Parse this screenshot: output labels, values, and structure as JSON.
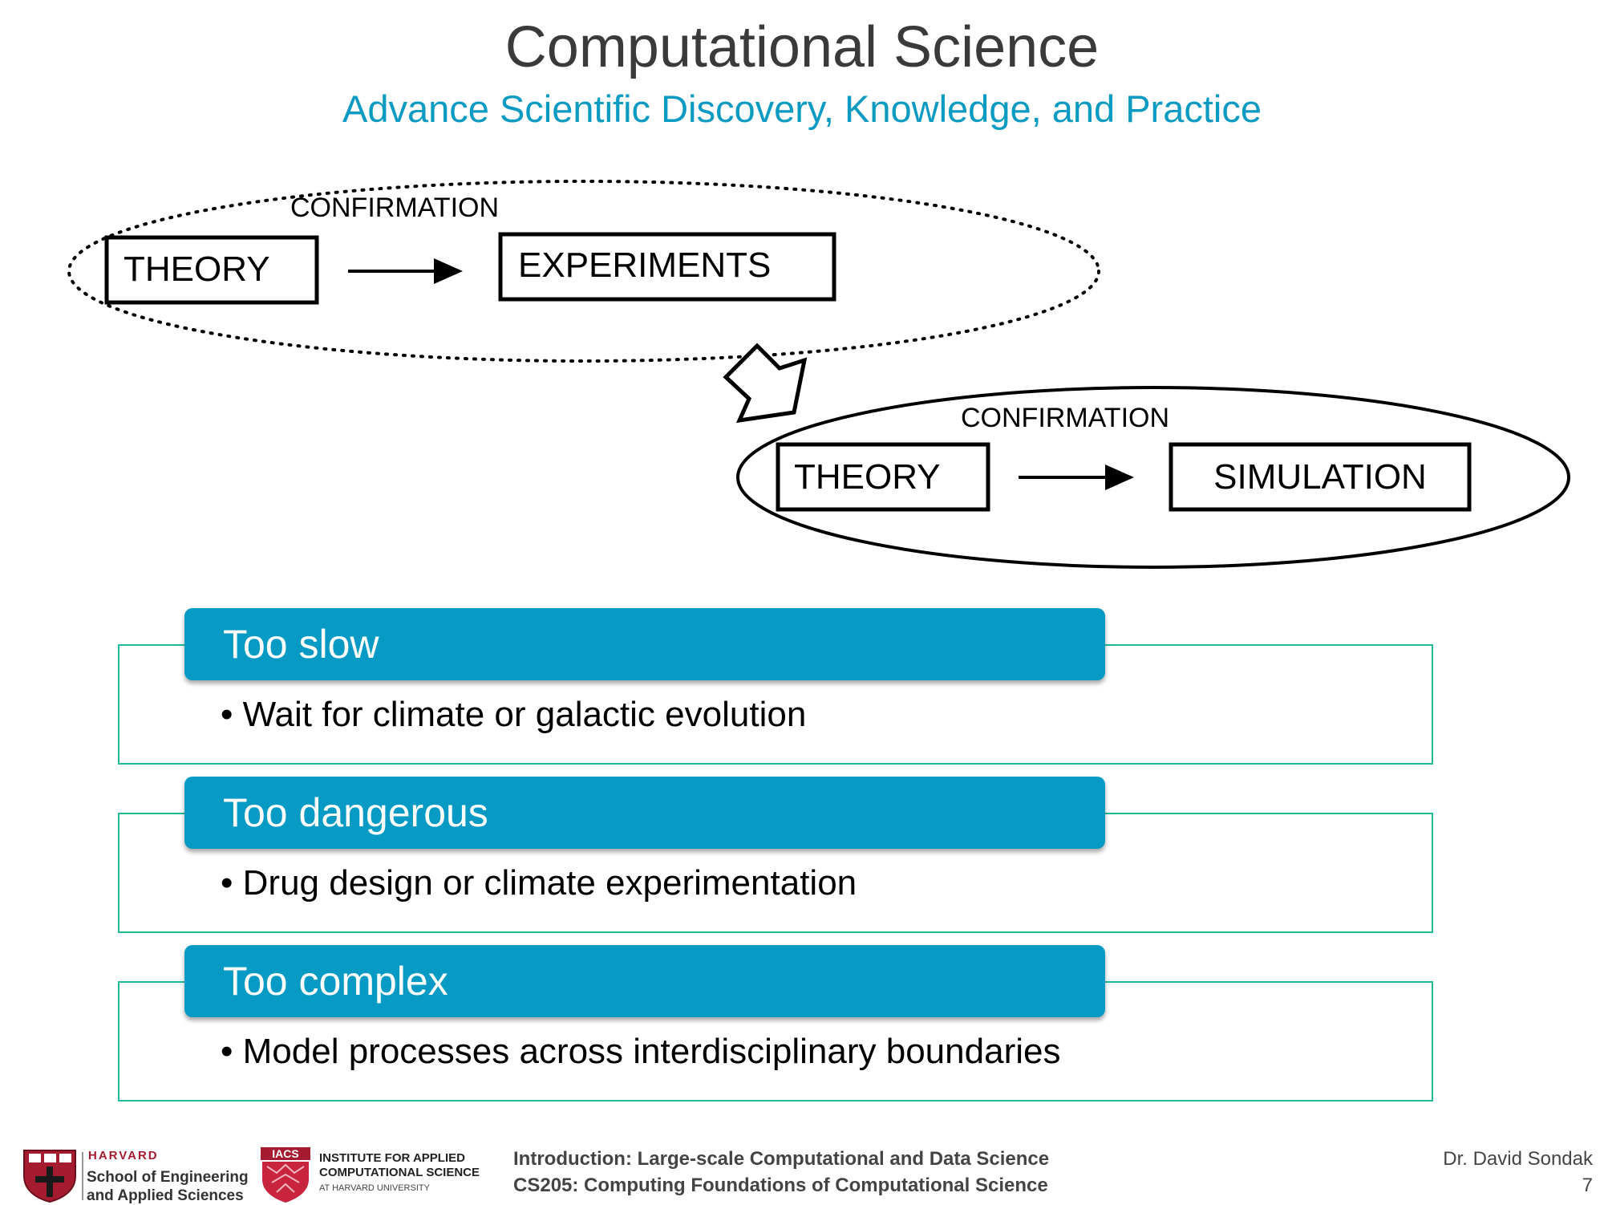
{
  "header": {
    "title": "Computational Science",
    "subtitle": "Advance Scientific Discovery, Knowledge, and Practice"
  },
  "diagram": {
    "top": {
      "confirmation": "CONFIRMATION",
      "left_box": "THEORY",
      "right_box": "EXPERIMENTS"
    },
    "bottom": {
      "confirmation": "CONFIRMATION",
      "left_box": "THEORY",
      "right_box": "SIMULATION"
    }
  },
  "cards": [
    {
      "heading": "Too slow",
      "bullet": "Wait for climate or galactic evolution"
    },
    {
      "heading": "Too dangerous",
      "bullet": "Drug design or climate experimentation"
    },
    {
      "heading": "Too complex",
      "bullet": "Model processes across interdisciplinary boundaries"
    }
  ],
  "footer": {
    "harvard_top": "HARVARD",
    "harvard_line1": "School of Engineering",
    "harvard_line2": "and Applied Sciences",
    "iacs_badge": "IACS",
    "iacs_line1": "INSTITUTE FOR APPLIED",
    "iacs_line2": "COMPUTATIONAL SCIENCE",
    "iacs_line3": "AT HARVARD UNIVERSITY",
    "course_line1": "Introduction: Large-scale Computational and Data Science",
    "course_line2": "CS205: Computing Foundations of Computational Science",
    "author": "Dr. David Sondak",
    "page_number": "7"
  },
  "colors": {
    "accent_blue": "#069ac4",
    "card_border": "#21b899",
    "harvard_red": "#a51c30"
  }
}
